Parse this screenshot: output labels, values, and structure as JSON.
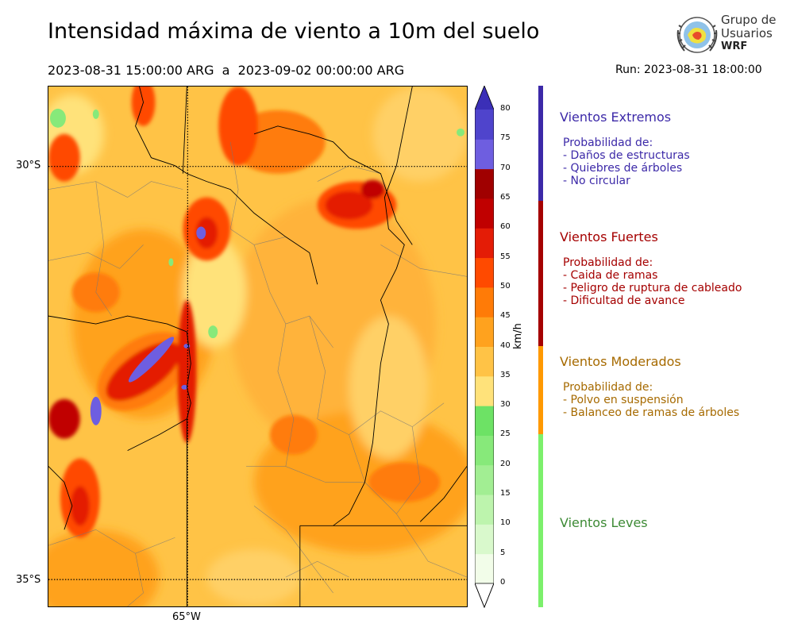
{
  "header": {
    "title": "Intensidad máxima de viento a 10m del suelo",
    "date_range": "2023-08-31 15:00:00 ARG  a  2023-09-02 00:00:00 ARG",
    "run": "Run: 2023-08-31 18:00:00"
  },
  "logo": {
    "line1": "Grupo de",
    "line2": "Usuarios",
    "line3": "WRF"
  },
  "map": {
    "lat_labels": [
      "30°S",
      "35°S"
    ],
    "lon_labels": [
      "65°W"
    ]
  },
  "colorbar": {
    "unit": "km/h",
    "ticks": [
      "0",
      "5",
      "10",
      "15",
      "20",
      "25",
      "30",
      "35",
      "40",
      "45",
      "50",
      "55",
      "60",
      "65",
      "70",
      "75",
      "80"
    ],
    "colors": [
      "#f2fde9",
      "#d9f9cc",
      "#bdf4ad",
      "#a2ee93",
      "#87e97a",
      "#6de265",
      "#ffe27a",
      "#ffc346",
      "#ffa21e",
      "#ff7b07",
      "#ff4a00",
      "#e41c06",
      "#c00000",
      "#a00000",
      "#6e5ee0",
      "#4f44cc",
      "#3b2fb7"
    ],
    "over_color": "#3b2fb7"
  },
  "categories": [
    {
      "title": "Vientos Extremos",
      "color": "#3c29a8",
      "lines": [
        "Probabilidad de:",
        "- Daños de estructuras",
        "- Quiebres de árboles",
        "- No circular"
      ]
    },
    {
      "title": "Vientos Fuertes",
      "color": "#a50000",
      "lines": [
        "Probabilidad de:",
        "- Caida de ramas",
        "- Peligro de ruptura de cableado",
        "- Dificultad de avance"
      ]
    },
    {
      "title": "Vientos Moderados",
      "color": "#a66a00",
      "lines": [
        "Probabilidad de:",
        "- Polvo en suspensión",
        "- Balanceo de ramas de árboles"
      ]
    },
    {
      "title": "Vientos Leves",
      "color": "#3d8a35",
      "lines": []
    }
  ]
}
